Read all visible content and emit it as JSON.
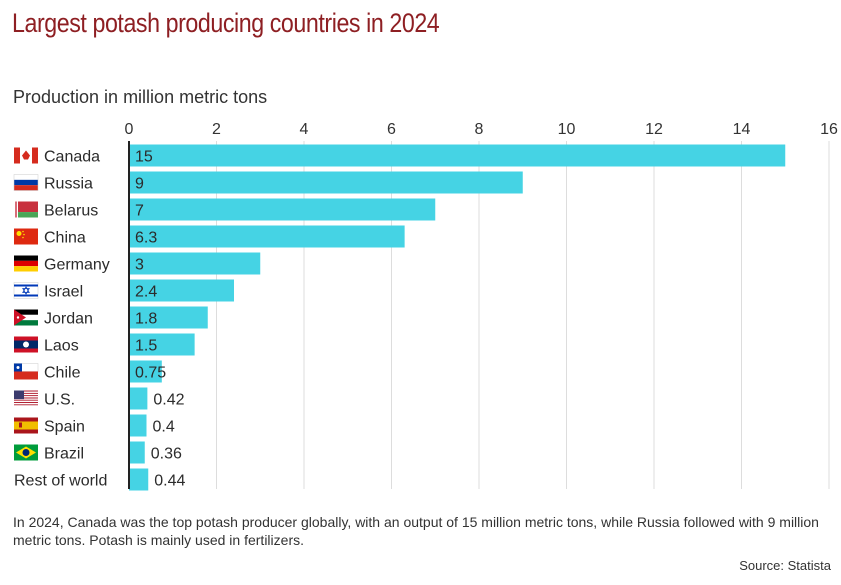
{
  "title": "Largest potash producing countries in 2024",
  "subtitle": "Production in million metric tons",
  "footnote": "In 2024, Canada was the top potash producer globally, with an output of 15 million metric tons, while Russia followed with 9 million metric tons. Potash is mainly used in fertilizers.",
  "source": "Source: Statista",
  "colors": {
    "bar": "#45d3e4",
    "title": "#8e1f23",
    "grid": "#dddddd",
    "axis": "#222222"
  },
  "chart_data": {
    "type": "bar",
    "orientation": "horizontal",
    "title": "Largest potash producing countries in 2024",
    "xlabel": "Production in million metric tons",
    "ylabel": "",
    "xlim": [
      0,
      16
    ],
    "ticks": [
      0,
      2,
      4,
      6,
      8,
      10,
      12,
      14,
      16
    ],
    "grid": true,
    "categories": [
      "Canada",
      "Russia",
      "Belarus",
      "China",
      "Germany",
      "Israel",
      "Jordan",
      "Laos",
      "Chile",
      "U.S.",
      "Spain",
      "Brazil",
      "Rest of world"
    ],
    "values": [
      15,
      9,
      7,
      6.3,
      3,
      2.4,
      1.8,
      1.5,
      0.75,
      0.42,
      0.4,
      0.36,
      0.44
    ],
    "value_labels": [
      "15",
      "9",
      "7",
      "6.3",
      "3",
      "2.4",
      "1.8",
      "1.5",
      "0.75",
      "0.42",
      "0.4",
      "0.36",
      "0.44"
    ],
    "flags": [
      "canada-flag",
      "russia-flag",
      "belarus-flag",
      "china-flag",
      "germany-flag",
      "israel-flag",
      "jordan-flag",
      "laos-flag",
      "chile-flag",
      "us-flag",
      "spain-flag",
      "brazil-flag",
      ""
    ]
  }
}
